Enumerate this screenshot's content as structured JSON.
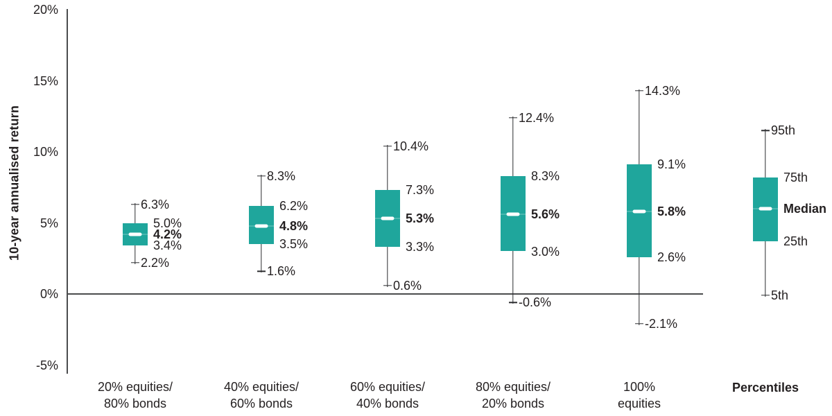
{
  "chart_data": {
    "type": "boxplot",
    "title": "",
    "ylabel": "10-year annualised return",
    "ylim": [
      -5,
      20
    ],
    "grid": false,
    "y_ticks": [
      {
        "value": 20,
        "label": "20%"
      },
      {
        "value": 15,
        "label": "15%"
      },
      {
        "value": 10,
        "label": "10%"
      },
      {
        "value": 5,
        "label": "5%"
      },
      {
        "value": 0,
        "label": "0%"
      },
      {
        "value": -5,
        "label": "-5%"
      }
    ],
    "boxes": [
      {
        "category_lines": [
          "20% equities/",
          "80% bonds"
        ],
        "p5": 2.2,
        "p25": 3.4,
        "median": 4.2,
        "p75": 5.0,
        "p95": 6.3,
        "labels": {
          "p95": "6.3%",
          "p75": "5.0%",
          "median": "4.2%",
          "p25": "3.4%",
          "p5": "2.2%"
        }
      },
      {
        "category_lines": [
          "40% equities/",
          "60% bonds"
        ],
        "p5": 1.6,
        "p25": 3.5,
        "median": 4.8,
        "p75": 6.2,
        "p95": 8.3,
        "labels": {
          "p95": "8.3%",
          "p75": "6.2%",
          "median": "4.8%",
          "p25": "3.5%",
          "p5": "1.6%"
        }
      },
      {
        "category_lines": [
          "60% equities/",
          "40% bonds"
        ],
        "p5": 0.6,
        "p25": 3.3,
        "median": 5.3,
        "p75": 7.3,
        "p95": 10.4,
        "labels": {
          "p95": "10.4%",
          "p75": "7.3%",
          "median": "5.3%",
          "p25": "3.3%",
          "p5": "0.6%"
        }
      },
      {
        "category_lines": [
          "80% equities/",
          "20% bonds"
        ],
        "p5": -0.6,
        "p25": 3.0,
        "median": 5.6,
        "p75": 8.3,
        "p95": 12.4,
        "labels": {
          "p95": "12.4%",
          "p75": "8.3%",
          "median": "5.6%",
          "p25": "3.0%",
          "p5": "-0.6%"
        }
      },
      {
        "category_lines": [
          "100%",
          "equities"
        ],
        "p5": -2.1,
        "p25": 2.6,
        "median": 5.8,
        "p75": 9.1,
        "p95": 14.3,
        "labels": {
          "p95": "14.3%",
          "p75": "9.1%",
          "median": "5.8%",
          "p25": "2.6%",
          "p5": "-2.1%"
        }
      }
    ],
    "legend_key": {
      "title": "Percentiles",
      "p5": -0.1,
      "p25": 3.7,
      "median": 6.0,
      "p75": 8.2,
      "p95": 11.5,
      "labels": {
        "p95": "95th",
        "p75": "75th",
        "median": "Median",
        "p25": "25th",
        "p5": "5th"
      }
    },
    "colors": {
      "box_fill": "#1FA69C",
      "median_dash": "#FFFFFF",
      "text": "#231F20",
      "axis_line": "#4A4B4D",
      "whisker_line": "#2B2C2E"
    }
  }
}
